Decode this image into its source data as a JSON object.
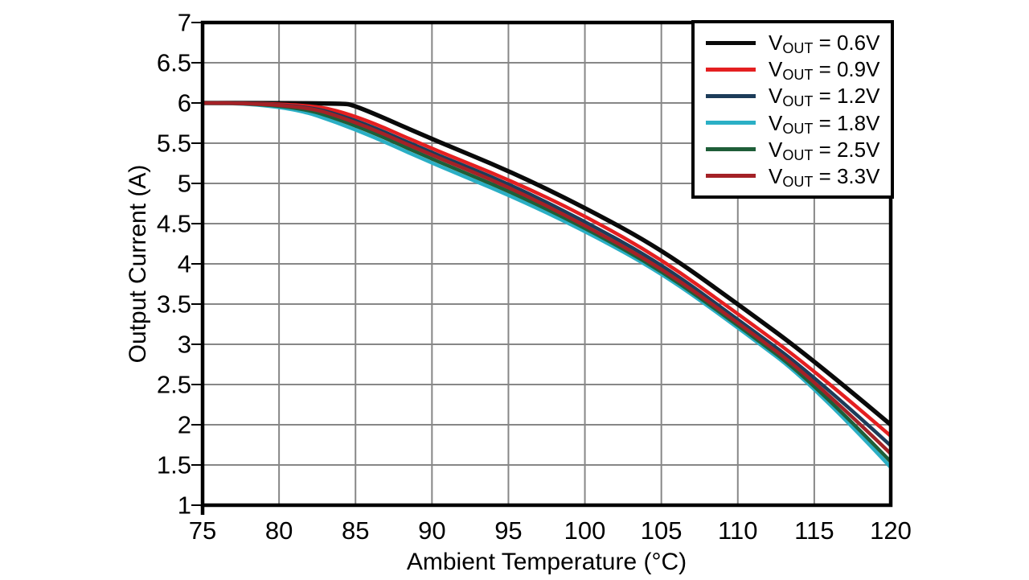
{
  "figure": {
    "background": "#ffffff",
    "frame_color": "#000000",
    "grid_color": "#878787",
    "text_color": "#000000"
  },
  "chart_data": {
    "type": "line",
    "title": "",
    "xlabel": "Ambient Temperature (°C)",
    "ylabel": "Output Current (A)",
    "xlim": [
      75,
      120
    ],
    "ylim": [
      1,
      7
    ],
    "xticks": [
      75,
      80,
      85,
      90,
      95,
      100,
      105,
      110,
      115,
      120
    ],
    "yticks": [
      1,
      1.5,
      2,
      2.5,
      3,
      3.5,
      4,
      4.5,
      5,
      5.5,
      6,
      6.5,
      7
    ],
    "grid": true,
    "legend_position": "top-right",
    "series": [
      {
        "id": "vout-0-6v",
        "name": "VOUT = 0.6V",
        "label": {
          "main": "V",
          "sub": "OUT",
          "rest": " = 0.6V"
        },
        "color": "#0a0a0a",
        "stroke_width": 5.5,
        "points": [
          [
            75,
            6.0
          ],
          [
            84,
            6.0
          ],
          [
            85,
            5.97
          ],
          [
            90,
            5.55
          ],
          [
            95,
            5.16
          ],
          [
            100,
            4.7
          ],
          [
            105,
            4.18
          ],
          [
            110,
            3.5
          ],
          [
            115,
            2.8
          ],
          [
            120,
            2.0
          ]
        ]
      },
      {
        "id": "vout-0-9v",
        "name": "VOUT = 0.9V",
        "label": {
          "main": "V",
          "sub": "OUT",
          "rest": " = 0.9V"
        },
        "color": "#e41f20",
        "stroke_width": 4.5,
        "points": [
          [
            75,
            6.0
          ],
          [
            81.5,
            6.0
          ],
          [
            85,
            5.85
          ],
          [
            90,
            5.43
          ],
          [
            95,
            5.05
          ],
          [
            100,
            4.6
          ],
          [
            105,
            4.06
          ],
          [
            110,
            3.38
          ],
          [
            115,
            2.68
          ],
          [
            120,
            1.86
          ]
        ]
      },
      {
        "id": "vout-1-2v",
        "name": "VOUT = 1.2V",
        "label": {
          "main": "V",
          "sub": "OUT",
          "rest": " = 1.2V"
        },
        "color": "#1c3c59",
        "stroke_width": 4.5,
        "points": [
          [
            75,
            6.0
          ],
          [
            81,
            6.0
          ],
          [
            85,
            5.8
          ],
          [
            90,
            5.38
          ],
          [
            95,
            5.0
          ],
          [
            100,
            4.53
          ],
          [
            105,
            4.0
          ],
          [
            110,
            3.31
          ],
          [
            115,
            2.61
          ],
          [
            120,
            1.74
          ]
        ]
      },
      {
        "id": "vout-1-8v",
        "name": "VOUT = 1.8V",
        "label": {
          "main": "V",
          "sub": "OUT",
          "rest": " = 1.8V"
        },
        "color": "#2bafc5",
        "stroke_width": 4.5,
        "points": [
          [
            75,
            6.0
          ],
          [
            80,
            6.0
          ],
          [
            85,
            5.68
          ],
          [
            90,
            5.25
          ],
          [
            95,
            4.86
          ],
          [
            100,
            4.41
          ],
          [
            105,
            3.89
          ],
          [
            110,
            3.21
          ],
          [
            115,
            2.49
          ],
          [
            120,
            1.47
          ]
        ]
      },
      {
        "id": "vout-2-5v",
        "name": "VOUT = 2.5V",
        "label": {
          "main": "V",
          "sub": "OUT",
          "rest": " = 2.5V"
        },
        "color": "#1e5e38",
        "stroke_width": 4.5,
        "points": [
          [
            75,
            6.0
          ],
          [
            80.5,
            6.0
          ],
          [
            85,
            5.73
          ],
          [
            90,
            5.3
          ],
          [
            95,
            4.91
          ],
          [
            100,
            4.45
          ],
          [
            105,
            3.92
          ],
          [
            110,
            3.24
          ],
          [
            115,
            2.52
          ],
          [
            120,
            1.54
          ]
        ]
      },
      {
        "id": "vout-3-3v",
        "name": "VOUT = 3.3V",
        "label": {
          "main": "V",
          "sub": "OUT",
          "rest": " = 3.3V"
        },
        "color": "#a42126",
        "stroke_width": 4.5,
        "points": [
          [
            75,
            6.0
          ],
          [
            81,
            6.0
          ],
          [
            85,
            5.77
          ],
          [
            90,
            5.35
          ],
          [
            95,
            4.96
          ],
          [
            100,
            4.48
          ],
          [
            105,
            3.95
          ],
          [
            110,
            3.27
          ],
          [
            115,
            2.56
          ],
          [
            120,
            1.64
          ]
        ]
      }
    ]
  }
}
